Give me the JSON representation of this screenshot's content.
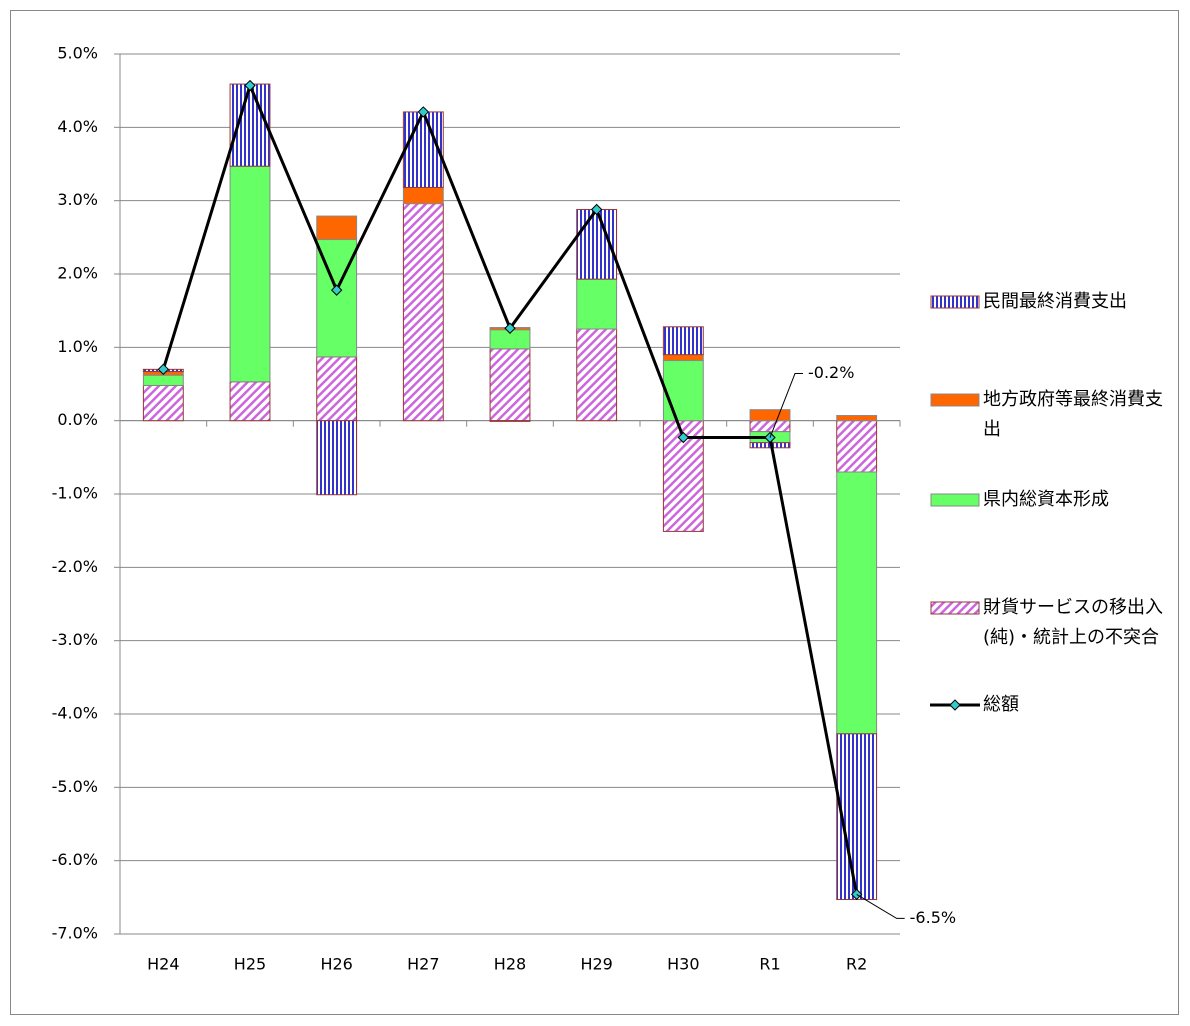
{
  "chart_data": {
    "type": "bar",
    "stacked": true,
    "categories": [
      "H24",
      "H25",
      "H26",
      "H27",
      "H28",
      "H29",
      "H30",
      "R1",
      "R2"
    ],
    "series": [
      {
        "name": "民間最終消費支出",
        "color": "#3333cc",
        "pattern": "vertical",
        "values": [
          0.03,
          1.12,
          -1.01,
          1.03,
          -0.01,
          0.95,
          0.38,
          -0.07,
          -2.26
        ]
      },
      {
        "name": "地方政府等最終消費支出",
        "color": "#ff6600",
        "values": [
          0.05,
          0.0,
          0.32,
          0.22,
          0.03,
          0.0,
          0.08,
          0.15,
          0.07
        ]
      },
      {
        "name": "県内総資本形成",
        "color": "#66ff66",
        "values": [
          0.14,
          2.94,
          1.6,
          0.0,
          0.26,
          0.68,
          0.82,
          -0.15,
          -3.57
        ]
      },
      {
        "name": "財貨サービスの移出入(純)・統計上の不突合",
        "color": "#cc66dd",
        "pattern": "diagonal",
        "values": [
          0.48,
          0.53,
          0.87,
          2.96,
          0.98,
          1.25,
          -1.51,
          -0.15,
          -0.7
        ]
      },
      {
        "name": "総額",
        "type": "line",
        "color": "#000000",
        "marker_color": "#33cccc",
        "values": [
          0.7,
          4.57,
          1.78,
          4.21,
          1.26,
          2.88,
          -0.23,
          -0.23,
          -6.46
        ],
        "value_labels": [
          null,
          null,
          null,
          null,
          null,
          null,
          null,
          "-0.2%",
          "-6.5%"
        ]
      }
    ],
    "ylim": [
      -7,
      5
    ],
    "yticks": [
      {
        "value": 5,
        "label": "5.0%"
      },
      {
        "value": 4,
        "label": "4.0%"
      },
      {
        "value": 3,
        "label": "3.0%"
      },
      {
        "value": 2,
        "label": "2.0%"
      },
      {
        "value": 1,
        "label": "1.0%"
      },
      {
        "value": 0,
        "label": "0.0%"
      },
      {
        "value": -1,
        "label": "-1.0%"
      },
      {
        "value": -2,
        "label": "-2.0%"
      },
      {
        "value": -3,
        "label": "-3.0%"
      },
      {
        "value": -4,
        "label": "-4.0%"
      },
      {
        "value": -5,
        "label": "-5.0%"
      },
      {
        "value": -6,
        "label": "-6.0%"
      },
      {
        "value": -7,
        "label": "-7.0%"
      }
    ],
    "grid": true,
    "legend": "right"
  }
}
